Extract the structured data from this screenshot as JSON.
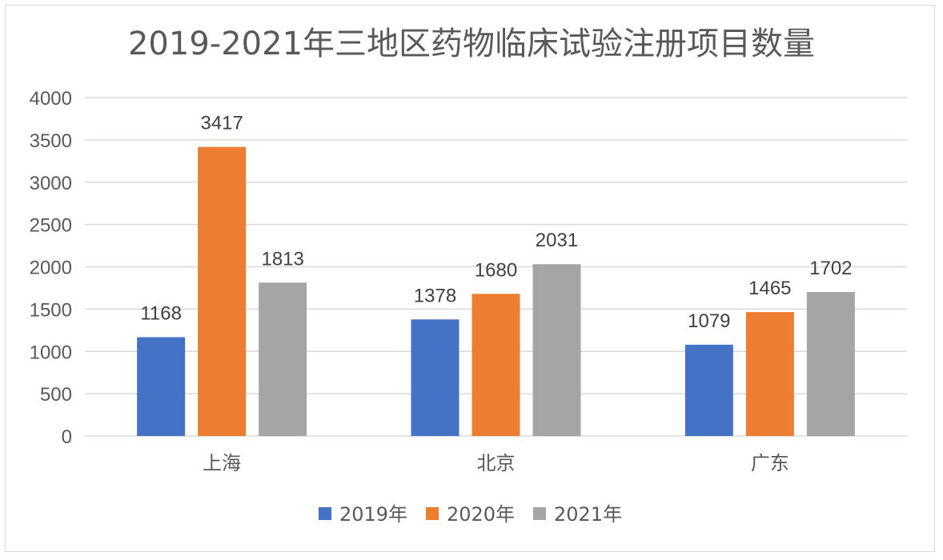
{
  "chart_data": {
    "type": "bar",
    "title": "2019-2021年三地区药物临床试验注册项目数量",
    "categories": [
      "上海",
      "北京",
      "广东"
    ],
    "series": [
      {
        "name": "2019年",
        "values": [
          1168,
          1378,
          1079
        ],
        "color": "#4472C4"
      },
      {
        "name": "2020年",
        "values": [
          3417,
          1680,
          1465
        ],
        "color": "#ED7D31"
      },
      {
        "name": "2021年",
        "values": [
          1813,
          2031,
          1702
        ],
        "color": "#A5A5A5"
      }
    ],
    "ylim": [
      0,
      4000
    ],
    "yticks": [
      0,
      500,
      1000,
      1500,
      2000,
      2500,
      3000,
      3500,
      4000
    ],
    "grid": true,
    "legend_position": "bottom",
    "data_labels": true,
    "gridline_color": "#d9d9d9"
  }
}
